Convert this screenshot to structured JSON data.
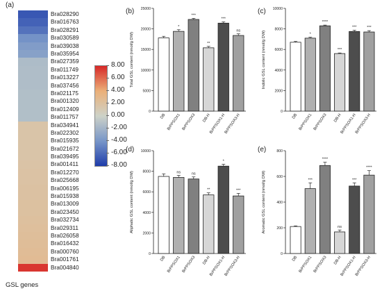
{
  "figure": {
    "labels": {
      "a": "(a)",
      "b": "(b)",
      "c": "(c)",
      "d": "(d)",
      "e": "(e)"
    },
    "heatmap_footer": "GSL genes"
  },
  "colors": {
    "bar_outline": "#222222",
    "bar_fills": [
      "#ffffff",
      "#b0b0b0",
      "#808080",
      "#d6d6d6",
      "#4d4d4d",
      "#a0a0a0"
    ]
  },
  "chart_data": [
    {
      "panel": "(a)",
      "type": "heatmap",
      "genes": [
        "Bra028290",
        "Bra016763",
        "Bra028291",
        "Bra030589",
        "Bra039038",
        "Bra035954",
        "Bra027359",
        "Bra011749",
        "Bra013227",
        "Bra037456",
        "Bra021175",
        "Bra001320",
        "Bra012409",
        "Bra011757",
        "Bra034941",
        "Bra022302",
        "Bra015935",
        "Bra021672",
        "Bra039495",
        "Bra001411",
        "Bra012270",
        "Bra025668",
        "Bra006195",
        "Bra015938",
        "Bra013009",
        "Bra023450",
        "Bra032734",
        "Bra029311",
        "Bra026058",
        "Bra016432",
        "Bra000760",
        "Bra001761",
        "Bra004840"
      ],
      "values": [
        -6.8,
        -6.3,
        -5.6,
        -4.2,
        -3.6,
        -3.3,
        -1.5,
        -1.4,
        -1.4,
        -1.4,
        -1.3,
        -1.3,
        -1.3,
        -1.3,
        1.6,
        1.6,
        1.6,
        1.6,
        1.6,
        1.7,
        1.8,
        1.8,
        1.9,
        1.9,
        2.0,
        2.0,
        2.1,
        2.2,
        2.3,
        2.4,
        2.5,
        2.6,
        7.6
      ],
      "colorbar_ticks": [
        "8.00",
        "6.00",
        "4.00",
        "2.00",
        "0.00",
        "-2.00",
        "-4.00",
        "-6.00",
        "-8.00"
      ],
      "colorbar_range": [
        -8,
        8
      ]
    },
    {
      "panel": "(b)",
      "type": "bar",
      "categories": [
        "DB",
        "BrPPSOX1",
        "BrPPSOX3",
        "DB-H",
        "BrPPSOX1-H",
        "BrPPSOX3-H"
      ],
      "values": [
        17800,
        19400,
        22300,
        15400,
        21400,
        18400
      ],
      "errors": [
        400,
        400,
        250,
        350,
        300,
        400
      ],
      "significance": [
        "",
        "*",
        "***",
        "**",
        "***",
        "ns"
      ],
      "ylabel": "Total GSL content (nmol/g DW)",
      "ylim": [
        0,
        25000
      ],
      "yticks": [
        "0",
        "5000",
        "10000",
        "15000",
        "20000",
        "25000"
      ]
    },
    {
      "panel": "(c)",
      "type": "bar",
      "categories": [
        "DB",
        "BrPPSOX1",
        "BrPPSOX3",
        "DB-H",
        "BrPPSOX1-H",
        "BrPPSOX3-H"
      ],
      "values": [
        6700,
        7100,
        8300,
        5600,
        7750,
        7700
      ],
      "errors": [
        80,
        90,
        70,
        60,
        120,
        130
      ],
      "significance": [
        "",
        "*",
        "****",
        "***",
        "***",
        "***"
      ],
      "ylabel": "Indolic GSL content (nmol/g DW)",
      "ylim": [
        0,
        10000
      ],
      "yticks": [
        "0",
        "2000",
        "4000",
        "6000",
        "8000",
        "10000"
      ]
    },
    {
      "panel": "(d)",
      "type": "bar",
      "categories": [
        "DB",
        "BrPPSOX1",
        "BrPPSOX3",
        "DB-H",
        "BrPPSOX1-H",
        "BrPPSOX3-H"
      ],
      "values": [
        7500,
        7400,
        7250,
        5700,
        8500,
        5600
      ],
      "errors": [
        250,
        200,
        200,
        200,
        180,
        250
      ],
      "significance": [
        "",
        "ns",
        "ns",
        "**",
        "*",
        "***"
      ],
      "ylabel": "Aliphatic GSL content (nmol/g DW)",
      "ylim": [
        0,
        10000
      ],
      "yticks": [
        "0",
        "2000",
        "4000",
        "6000",
        "8000",
        "10000"
      ]
    },
    {
      "panel": "(e)",
      "type": "bar",
      "categories": [
        "DB",
        "BrPPSOX1",
        "BrPPSOX3",
        "DB-H",
        "BrPPSOX1-H",
        "BrPPSOX3-H"
      ],
      "values": [
        210,
        505,
        685,
        168,
        525,
        610
      ],
      "errors": [
        5,
        45,
        25,
        15,
        25,
        35
      ],
      "significance": [
        "",
        "***",
        "****",
        "ns",
        "***",
        "****"
      ],
      "ylabel": "Aromatic GSL content (nmol/g DW)",
      "ylim": [
        0,
        800
      ],
      "yticks": [
        "0",
        "200",
        "400",
        "600",
        "800"
      ]
    }
  ]
}
